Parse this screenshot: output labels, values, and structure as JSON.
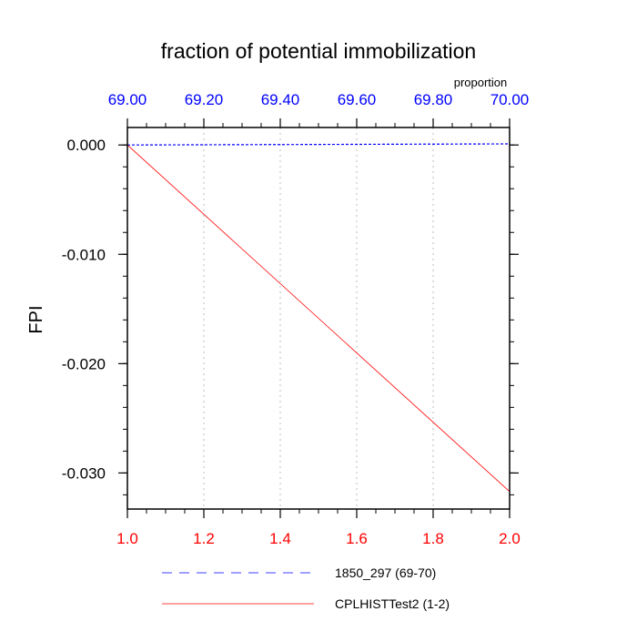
{
  "chart_data": {
    "type": "line",
    "title": "fraction of potential immobilization",
    "ylabel": "FPI",
    "top_axis_label": "proportion",
    "bottom_axis": {
      "range": [
        1.0,
        2.0
      ],
      "ticks": [
        1.0,
        1.2,
        1.4,
        1.6,
        1.8,
        2.0
      ],
      "tick_labels": [
        "1.0",
        "1.2",
        "1.4",
        "1.6",
        "1.8",
        "2.0"
      ],
      "color": "#ff0000"
    },
    "top_axis": {
      "range": [
        69.0,
        70.0
      ],
      "ticks": [
        69.0,
        69.2,
        69.4,
        69.6,
        69.8,
        70.0
      ],
      "tick_labels": [
        "69.00",
        "69.20",
        "69.40",
        "69.60",
        "69.80",
        "70.00"
      ],
      "color": "#0000ff"
    },
    "y_axis": {
      "range": [
        -0.0333,
        0.0016
      ],
      "ticks": [
        0.0,
        -0.01,
        -0.02,
        -0.03
      ],
      "tick_labels": [
        "0.000",
        "-0.010",
        "-0.020",
        "-0.030"
      ]
    },
    "grid": "vertical dotted",
    "series": [
      {
        "name": "1850_297 (69-70)",
        "axis": "top",
        "color": "#0000ff",
        "dash": "dashed",
        "x": [
          69.0,
          70.0
        ],
        "y": [
          0.0,
          0.0001
        ]
      },
      {
        "name": "CPLHISTTest2 (1-2)",
        "axis": "bottom",
        "color": "#ff0000",
        "dash": "solid",
        "x": [
          1.0,
          2.0
        ],
        "y": [
          0.0,
          -0.0317
        ]
      }
    ],
    "legend": [
      {
        "label": "1850_297 (69-70)",
        "color": "#0000ff",
        "dash": "dashed"
      },
      {
        "label": "CPLHISTTest2 (1-2)",
        "color": "#ff0000",
        "dash": "solid"
      }
    ],
    "legend_position": "bottom"
  }
}
